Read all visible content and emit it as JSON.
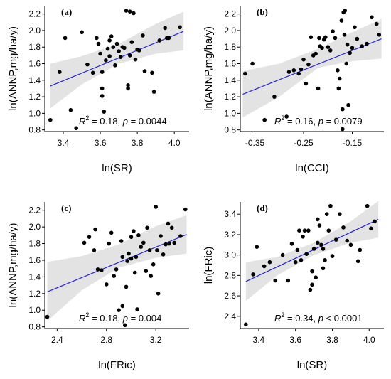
{
  "chart_data": [
    {
      "type": "scatter",
      "panel_label": "(a)",
      "xlabel": "ln(SR)",
      "ylabel": "ln(ANNP,mg/ha/y)",
      "xlim": [
        3.3,
        4.08
      ],
      "ylim": [
        0.78,
        2.3
      ],
      "xticks": [
        "3.4",
        "3.6",
        "3.8",
        "4.0"
      ],
      "xtick_values": [
        3.4,
        3.6,
        3.8,
        4.0
      ],
      "yticks": [
        "0.8",
        "1.0",
        "1.2",
        "1.4",
        "1.6",
        "1.8",
        "2.0",
        "2.2"
      ],
      "ytick_values": [
        0.8,
        1.0,
        1.2,
        1.4,
        1.6,
        1.8,
        2.0,
        2.2
      ],
      "stat_r2": "0.18,",
      "stat_op": "=",
      "stat_p": "0.0044",
      "fit_line": {
        "x": [
          3.33,
          4.05
        ],
        "y": [
          1.33,
          1.99
        ]
      },
      "confidence_band": {
        "x": [
          3.33,
          3.5,
          3.7,
          3.9,
          4.05
        ],
        "lower": [
          1.06,
          1.35,
          1.6,
          1.72,
          1.76
        ],
        "upper": [
          1.6,
          1.69,
          1.84,
          2.08,
          2.23
        ]
      },
      "points": [
        [
          3.33,
          0.92
        ],
        [
          3.38,
          1.5
        ],
        [
          3.41,
          1.91
        ],
        [
          3.44,
          1.04
        ],
        [
          3.47,
          0.82
        ],
        [
          3.5,
          1.98
        ],
        [
          3.53,
          1.59
        ],
        [
          3.56,
          1.49
        ],
        [
          3.58,
          1.91
        ],
        [
          3.59,
          1.84
        ],
        [
          3.6,
          1.72
        ],
        [
          3.61,
          1.5
        ],
        [
          3.61,
          1.3
        ],
        [
          3.61,
          1.21
        ],
        [
          3.62,
          1.02
        ],
        [
          3.63,
          1.64
        ],
        [
          3.64,
          1.78
        ],
        [
          3.65,
          1.88
        ],
        [
          3.65,
          1.69
        ],
        [
          3.66,
          1.93
        ],
        [
          3.67,
          1.8
        ],
        [
          3.68,
          1.58
        ],
        [
          3.69,
          1.84
        ],
        [
          3.7,
          1.75
        ],
        [
          3.71,
          1.68
        ],
        [
          3.72,
          1.8
        ],
        [
          3.73,
          1.79
        ],
        [
          3.74,
          2.24
        ],
        [
          3.75,
          1.34
        ],
        [
          3.75,
          1.3
        ],
        [
          3.76,
          2.23
        ],
        [
          3.76,
          1.7
        ],
        [
          3.77,
          1.86
        ],
        [
          3.78,
          2.21
        ],
        [
          3.79,
          1.65
        ],
        [
          3.8,
          1.77
        ],
        [
          3.81,
          1.76
        ],
        [
          3.83,
          1.94
        ],
        [
          3.84,
          1.51
        ],
        [
          3.88,
          1.49
        ],
        [
          3.89,
          1.26
        ],
        [
          3.92,
          1.88
        ],
        [
          3.95,
          2.03
        ],
        [
          3.96,
          1.91
        ],
        [
          3.97,
          1.91
        ],
        [
          4.03,
          2.04
        ]
      ]
    },
    {
      "type": "scatter",
      "panel_label": "(b)",
      "xlabel": "ln(CCI)",
      "ylabel": "ln(ANNP,mg/ha/y)",
      "xlim": [
        -0.38,
        -0.085
      ],
      "ylim": [
        0.78,
        2.3
      ],
      "xticks": [
        "-0.35",
        "-0.25",
        "-0.15"
      ],
      "xtick_values": [
        -0.35,
        -0.25,
        -0.15
      ],
      "yticks": [
        "0.8",
        "1.0",
        "1.2",
        "1.4",
        "1.6",
        "1.8",
        "2.0",
        "2.2"
      ],
      "ytick_values": [
        0.8,
        1.0,
        1.2,
        1.4,
        1.6,
        1.8,
        2.0,
        2.2
      ],
      "stat_r2": "0.16,",
      "stat_op": "=",
      "stat_p": "0.0079",
      "fit_line": {
        "x": [
          -0.375,
          -0.09
        ],
        "y": [
          1.23,
          1.9
        ]
      },
      "confidence_band": {
        "x": [
          -0.375,
          -0.3,
          -0.22,
          -0.15,
          -0.09
        ],
        "lower": [
          0.95,
          1.2,
          1.55,
          1.63,
          1.66
        ],
        "upper": [
          1.51,
          1.6,
          1.78,
          1.98,
          2.14
        ]
      },
      "points": [
        [
          -0.37,
          1.48
        ],
        [
          -0.355,
          1.6
        ],
        [
          -0.33,
          0.92
        ],
        [
          -0.31,
          1.2
        ],
        [
          -0.285,
          0.96
        ],
        [
          -0.28,
          1.5
        ],
        [
          -0.27,
          1.52
        ],
        [
          -0.26,
          1.48
        ],
        [
          -0.255,
          1.53
        ],
        [
          -0.25,
          1.65
        ],
        [
          -0.245,
          1.36
        ],
        [
          -0.24,
          1.59
        ],
        [
          -0.235,
          1.92
        ],
        [
          -0.23,
          1.7
        ],
        [
          -0.225,
          1.72
        ],
        [
          -0.22,
          1.3
        ],
        [
          -0.218,
          1.91
        ],
        [
          -0.216,
          1.81
        ],
        [
          -0.212,
          1.79
        ],
        [
          -0.208,
          1.89
        ],
        [
          -0.205,
          1.92
        ],
        [
          -0.2,
          1.8
        ],
        [
          -0.195,
          1.76
        ],
        [
          -0.19,
          1.99
        ],
        [
          -0.185,
          1.91
        ],
        [
          -0.18,
          1.52
        ],
        [
          -0.178,
          1.3
        ],
        [
          -0.176,
          1.42
        ],
        [
          -0.172,
          2.12
        ],
        [
          -0.17,
          0.81
        ],
        [
          -0.17,
          1.05
        ],
        [
          -0.168,
          2.22
        ],
        [
          -0.166,
          1.95
        ],
        [
          -0.165,
          2.24
        ],
        [
          -0.162,
          1.6
        ],
        [
          -0.16,
          1.83
        ],
        [
          -0.158,
          1.1
        ],
        [
          -0.155,
          1.73
        ],
        [
          -0.15,
          1.79
        ],
        [
          -0.145,
          2.04
        ],
        [
          -0.14,
          1.9
        ],
        [
          -0.13,
          1.81
        ],
        [
          -0.12,
          1.84
        ],
        [
          -0.11,
          2.16
        ],
        [
          -0.1,
          2.08
        ],
        [
          -0.095,
          1.95
        ]
      ]
    },
    {
      "type": "scatter",
      "panel_label": "(c)",
      "xlabel": "ln(FRic)",
      "ylabel": "ln(ANNP,mg/ha/y)",
      "xlim": [
        2.3,
        3.47
      ],
      "ylim": [
        0.78,
        2.3
      ],
      "xticks": [
        "2.4",
        "2.8",
        "3.2"
      ],
      "xtick_values": [
        2.4,
        2.8,
        3.2
      ],
      "yticks": [
        "0.8",
        "1.0",
        "1.2",
        "1.4",
        "1.6",
        "1.8",
        "2.0",
        "2.2"
      ],
      "ytick_values": [
        0.8,
        1.0,
        1.2,
        1.4,
        1.6,
        1.8,
        2.0,
        2.2
      ],
      "stat_r2": "0.18,",
      "stat_op": "=",
      "stat_p": "0.004",
      "fit_line": {
        "x": [
          2.32,
          3.45
        ],
        "y": [
          1.22,
          1.91
        ]
      },
      "confidence_band": {
        "x": [
          2.32,
          2.6,
          2.9,
          3.2,
          3.45
        ],
        "lower": [
          0.87,
          1.24,
          1.51,
          1.63,
          1.68
        ],
        "upper": [
          1.58,
          1.65,
          1.79,
          2.01,
          2.14
        ]
      },
      "points": [
        [
          2.32,
          0.92
        ],
        [
          2.62,
          1.81
        ],
        [
          2.66,
          1.88
        ],
        [
          2.7,
          1.72
        ],
        [
          2.71,
          1.97
        ],
        [
          2.73,
          1.49
        ],
        [
          2.76,
          1.48
        ],
        [
          2.8,
          1.31
        ],
        [
          2.82,
          1.8
        ],
        [
          2.84,
          1.93
        ],
        [
          2.86,
          1.41
        ],
        [
          2.88,
          1.49
        ],
        [
          2.9,
          1.0
        ],
        [
          2.92,
          1.83
        ],
        [
          2.93,
          1.64
        ],
        [
          2.93,
          1.05
        ],
        [
          2.95,
          0.82
        ],
        [
          2.96,
          1.28
        ],
        [
          2.97,
          1.59
        ],
        [
          2.98,
          1.68
        ],
        [
          3.0,
          1.62
        ],
        [
          3.0,
          1.88
        ],
        [
          3.02,
          1.95
        ],
        [
          3.03,
          1.45
        ],
        [
          3.04,
          1.64
        ],
        [
          3.05,
          1.01
        ],
        [
          3.06,
          1.9
        ],
        [
          3.08,
          1.76
        ],
        [
          3.1,
          1.81
        ],
        [
          3.12,
          1.47
        ],
        [
          3.13,
          1.99
        ],
        [
          3.15,
          1.72
        ],
        [
          3.16,
          1.41
        ],
        [
          3.18,
          1.55
        ],
        [
          3.2,
          2.24
        ],
        [
          3.21,
          1.72
        ],
        [
          3.22,
          1.2
        ],
        [
          3.24,
          1.89
        ],
        [
          3.26,
          1.67
        ],
        [
          3.28,
          1.79
        ],
        [
          3.3,
          2.04
        ],
        [
          3.31,
          1.8
        ],
        [
          3.33,
          1.99
        ],
        [
          3.35,
          1.81
        ],
        [
          3.4,
          1.89
        ],
        [
          3.44,
          2.21
        ]
      ]
    },
    {
      "type": "scatter",
      "panel_label": "(d)",
      "xlabel": "ln(SR)",
      "ylabel": "ln(FRic)",
      "xlim": [
        3.3,
        4.08
      ],
      "ylim": [
        2.28,
        3.52
      ],
      "xticks": [
        "3.4",
        "3.6",
        "3.8",
        "4.0"
      ],
      "xtick_values": [
        3.4,
        3.6,
        3.8,
        4.0
      ],
      "yticks": [
        "2.4",
        "2.6",
        "2.8",
        "3.0",
        "3.2",
        "3.4"
      ],
      "ytick_values": [
        2.4,
        2.6,
        2.8,
        3.0,
        3.2,
        3.4
      ],
      "stat_r2": "0.34,",
      "stat_op": "<",
      "stat_p": "0.0001",
      "fit_line": {
        "x": [
          3.33,
          4.05
        ],
        "y": [
          2.74,
          3.35
        ]
      },
      "confidence_band": {
        "x": [
          3.33,
          3.5,
          3.7,
          3.9,
          4.05
        ],
        "lower": [
          2.55,
          2.8,
          3.0,
          3.12,
          3.17
        ],
        "upper": [
          2.93,
          2.98,
          3.12,
          3.33,
          3.53
        ]
      },
      "points": [
        [
          3.33,
          2.32
        ],
        [
          3.37,
          2.81
        ],
        [
          3.39,
          3.08
        ],
        [
          3.43,
          2.89
        ],
        [
          3.46,
          2.93
        ],
        [
          3.49,
          2.75
        ],
        [
          3.53,
          3.0
        ],
        [
          3.56,
          2.75
        ],
        [
          3.58,
          3.11
        ],
        [
          3.6,
          2.93
        ],
        [
          3.61,
          3.05
        ],
        [
          3.62,
          3.24
        ],
        [
          3.63,
          2.95
        ],
        [
          3.64,
          3.18
        ],
        [
          3.65,
          3.24
        ],
        [
          3.66,
          3.01
        ],
        [
          3.67,
          3.24
        ],
        [
          3.68,
          2.66
        ],
        [
          3.69,
          2.71
        ],
        [
          3.69,
          2.84
        ],
        [
          3.7,
          3.06
        ],
        [
          3.71,
          2.78
        ],
        [
          3.72,
          3.35
        ],
        [
          3.72,
          3.12
        ],
        [
          3.73,
          3.29
        ],
        [
          3.74,
          3.1
        ],
        [
          3.75,
          2.87
        ],
        [
          3.75,
          3.06
        ],
        [
          3.76,
          2.95
        ],
        [
          3.77,
          3.4
        ],
        [
          3.78,
          3.24
        ],
        [
          3.79,
          3.48
        ],
        [
          3.8,
          2.99
        ],
        [
          3.82,
          3.15
        ],
        [
          3.84,
          3.4
        ],
        [
          3.86,
          3.27
        ],
        [
          3.88,
          3.14
        ],
        [
          3.9,
          3.1
        ],
        [
          3.94,
          2.94
        ],
        [
          3.95,
          3.05
        ],
        [
          3.99,
          3.48
        ],
        [
          4.01,
          3.26
        ],
        [
          4.03,
          3.33
        ]
      ]
    }
  ]
}
